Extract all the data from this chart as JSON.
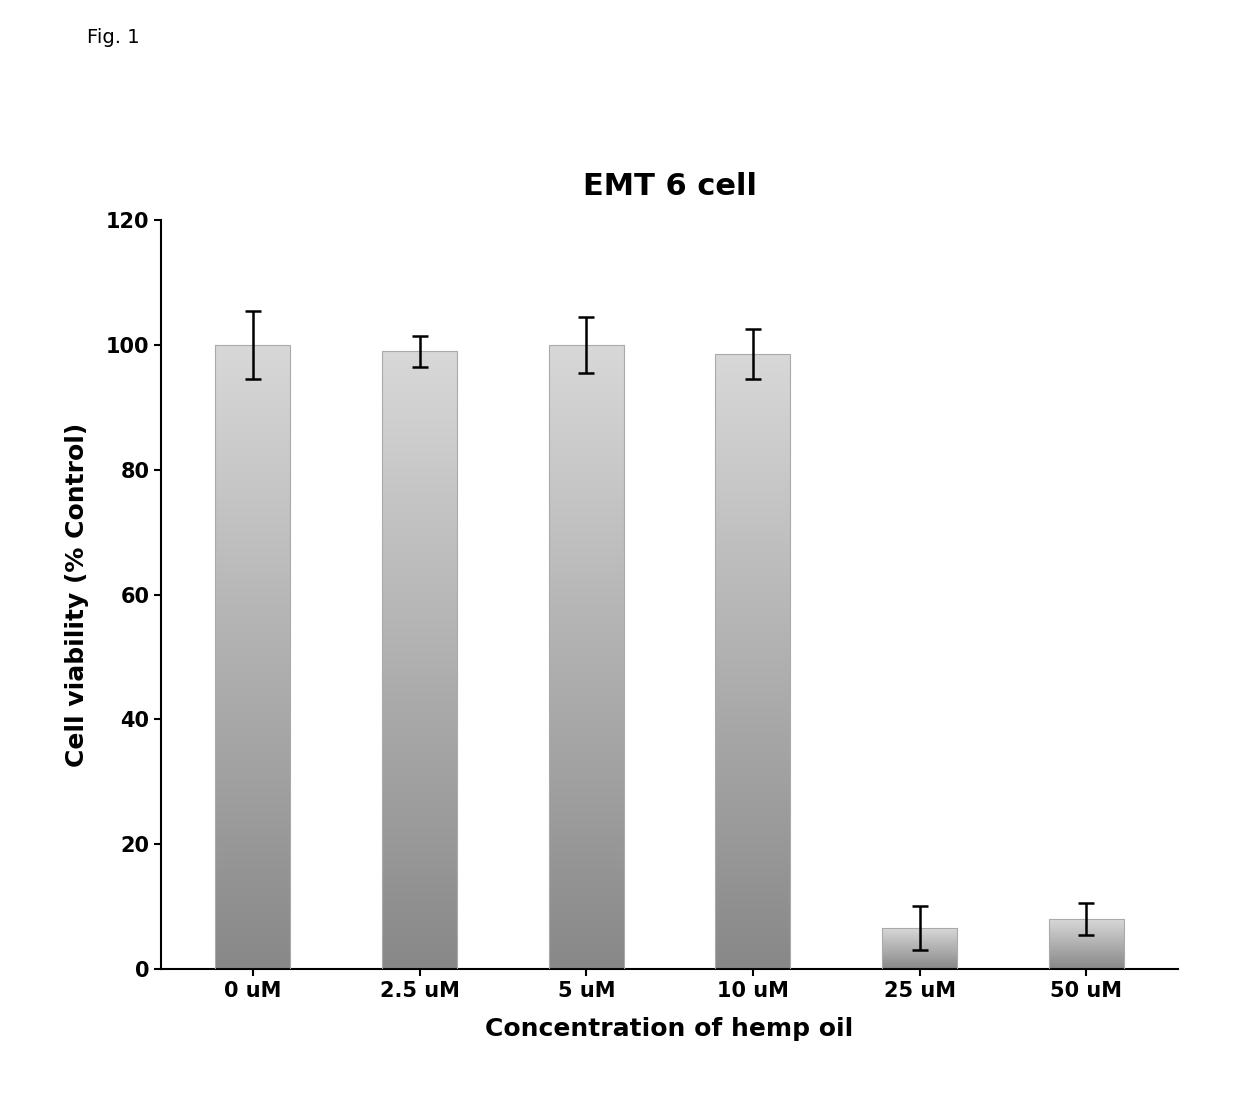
{
  "title": "EMT 6 cell",
  "xlabel": "Concentration of hemp oil",
  "ylabel": "Cell viability (% Control)",
  "fig_label": "Fig. 1",
  "categories": [
    "0 uM",
    "2.5 uM",
    "5 uM",
    "10 uM",
    "25 uM",
    "50 uM"
  ],
  "values": [
    100.0,
    99.0,
    100.0,
    98.5,
    6.5,
    8.0
  ],
  "errors": [
    5.5,
    2.5,
    4.5,
    4.0,
    3.5,
    2.5
  ],
  "ylim": [
    0,
    120
  ],
  "yticks": [
    0,
    20,
    40,
    60,
    80,
    100,
    120
  ],
  "bar_color_top": "#d8d8d8",
  "bar_color_bottom": "#888888",
  "background_color": "#ffffff",
  "title_fontsize": 22,
  "label_fontsize": 18,
  "tick_fontsize": 15,
  "fig_label_fontsize": 14,
  "bar_width": 0.45
}
